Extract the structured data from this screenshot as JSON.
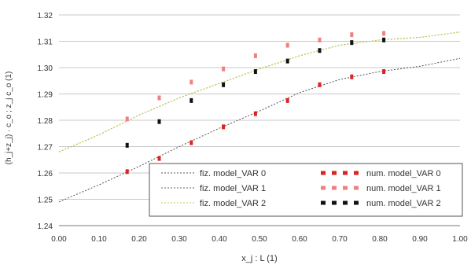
{
  "chart_data": {
    "type": "line",
    "xlabel": "x_j : L (1)",
    "ylabel": "(h_j+z_j) · c_o ; z_j c_o (1)",
    "xlim": [
      0,
      1
    ],
    "ylim": [
      1.24,
      1.32
    ],
    "xticks": [
      "0.00",
      "0.10",
      "0.20",
      "0.30",
      "0.40",
      "0.50",
      "0.60",
      "0.70",
      "0.80",
      "0.90",
      "1.00"
    ],
    "yticks": [
      "1.24",
      "1.25",
      "1.26",
      "1.27",
      "1.28",
      "1.29",
      "1.30",
      "1.31",
      "1.32"
    ],
    "grid": "horizontal",
    "legend_position": "bottom-right",
    "series": [
      {
        "name": "fiz. model_VAR 0",
        "color": "#555555",
        "style": "dotted",
        "x": [
          0.0,
          0.1,
          0.2,
          0.3,
          0.4,
          0.5,
          0.6,
          0.7,
          0.8,
          0.9,
          1.0
        ],
        "y": [
          1.249,
          1.2555,
          1.2625,
          1.27,
          1.277,
          1.2835,
          1.2905,
          1.2955,
          1.2985,
          1.3005,
          1.3035
        ]
      },
      {
        "name": "fiz. model_VAR 1",
        "color": "#666666",
        "style": "dotted",
        "x": [
          0.0,
          0.1,
          0.2,
          0.3,
          0.4,
          0.5,
          0.6,
          0.7,
          0.8,
          0.9,
          1.0
        ],
        "y": [
          1.268,
          1.2745,
          1.282,
          1.2885,
          1.294,
          1.2995,
          1.3045,
          1.3085,
          1.3105,
          1.3115,
          1.3135
        ]
      },
      {
        "name": "fiz. model_VAR 2",
        "color": "#cccc44",
        "style": "dotted",
        "x": [
          0.0,
          0.1,
          0.2,
          0.3,
          0.4,
          0.5,
          0.6,
          0.7,
          0.8,
          0.9,
          1.0
        ],
        "y": [
          1.268,
          1.2745,
          1.282,
          1.2885,
          1.294,
          1.2995,
          1.3045,
          1.3085,
          1.3105,
          1.3115,
          1.3135
        ]
      },
      {
        "name": "num. model_VAR 0",
        "color": "#dd2222",
        "style": "dashed",
        "x": [
          0.17,
          0.25,
          0.33,
          0.41,
          0.49,
          0.57,
          0.65,
          0.73,
          0.81
        ],
        "y": [
          1.2605,
          1.2655,
          1.2715,
          1.2775,
          1.2825,
          1.2875,
          1.2935,
          1.2965,
          1.2985
        ]
      },
      {
        "name": "num. model_VAR 1",
        "color": "#f08080",
        "style": "dashed",
        "x": [
          0.17,
          0.25,
          0.33,
          0.41,
          0.49,
          0.57,
          0.65,
          0.73,
          0.81
        ],
        "y": [
          1.2805,
          1.2885,
          1.2945,
          1.2995,
          1.3045,
          1.3085,
          1.3105,
          1.3125,
          1.313
        ]
      },
      {
        "name": "num. model_VAR 2",
        "color": "#111111",
        "style": "dashed",
        "x": [
          0.17,
          0.25,
          0.33,
          0.41,
          0.49,
          0.57,
          0.65,
          0.73,
          0.81
        ],
        "y": [
          1.2705,
          1.2795,
          1.2875,
          1.2935,
          1.2985,
          1.3025,
          1.3065,
          1.3095,
          1.3105
        ]
      }
    ]
  }
}
